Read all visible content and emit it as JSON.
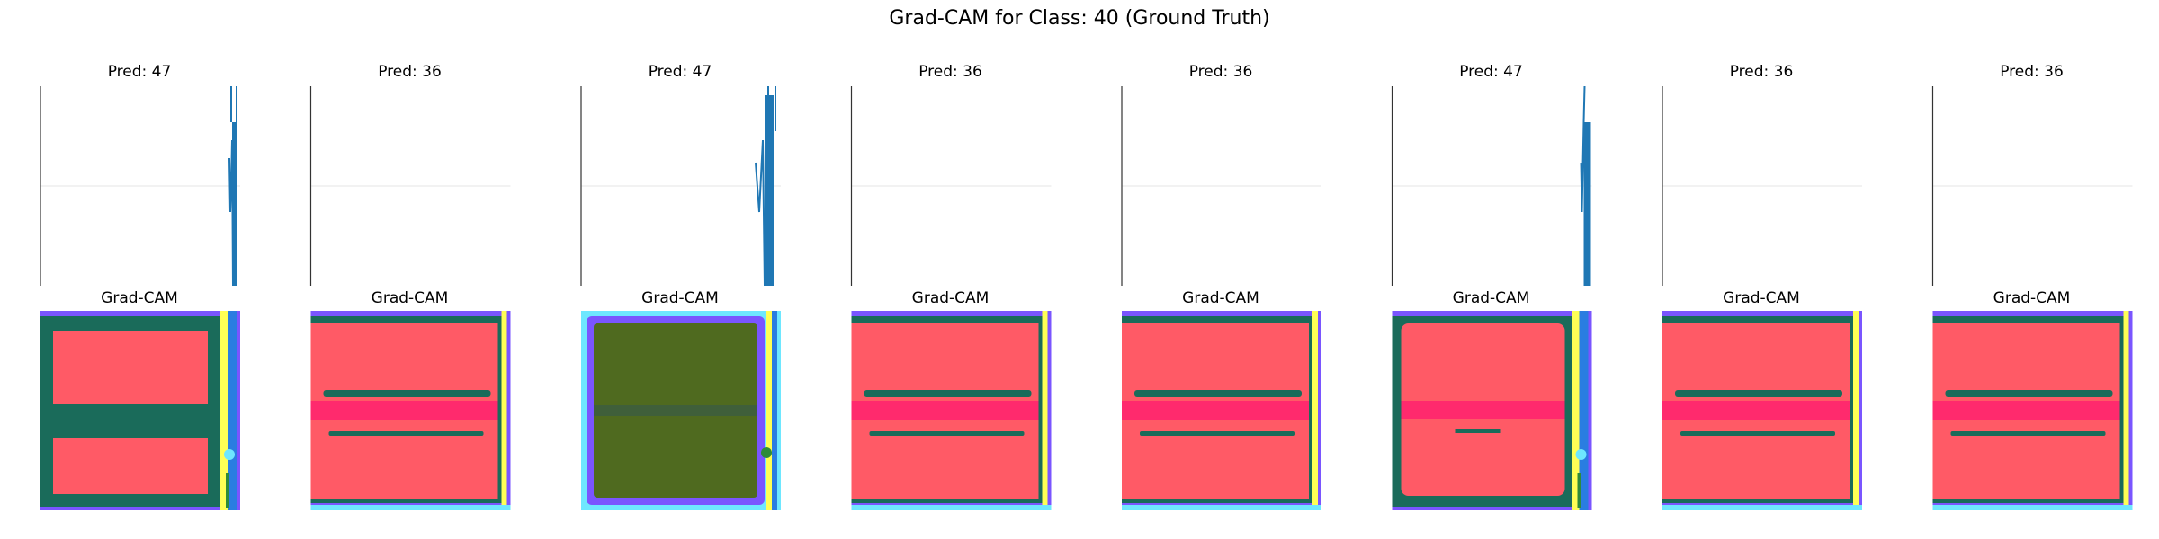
{
  "chart_data": {
    "type": "figure-grid",
    "title": "Grad-CAM for Class: 40 (Ground Truth)",
    "rows": [
      "signal",
      "gradcam"
    ],
    "gradcam_label": "Grad-CAM",
    "panels": [
      {
        "pred_label": "Pred: 47",
        "signal_variant": "A",
        "heatmap_variant": "edge"
      },
      {
        "pred_label": "Pred: 36",
        "signal_variant": "none",
        "heatmap_variant": "red"
      },
      {
        "pred_label": "Pred: 47",
        "signal_variant": "B",
        "heatmap_variant": "olive"
      },
      {
        "pred_label": "Pred: 36",
        "signal_variant": "none",
        "heatmap_variant": "red"
      },
      {
        "pred_label": "Pred: 36",
        "signal_variant": "none",
        "heatmap_variant": "red"
      },
      {
        "pred_label": "Pred: 47",
        "signal_variant": "C",
        "heatmap_variant": "edge2"
      },
      {
        "pred_label": "Pred: 36",
        "signal_variant": "none",
        "heatmap_variant": "red"
      },
      {
        "pred_label": "Pred: 36",
        "signal_variant": "none",
        "heatmap_variant": "red"
      }
    ],
    "colors": {
      "signal": "#1f77b4",
      "axis": "#333333",
      "grid": "#e6e6e6",
      "heat_red": "#ff5a66",
      "heat_band": "#ff2a6d",
      "heat_teal": "#1a6b5a",
      "heat_purple": "#7a55ff",
      "heat_cyan": "#6ee7ff",
      "heat_yellow": "#ffff55",
      "heat_blue": "#2a7de1",
      "heat_olive": "#4f6a1f",
      "heat_green": "#2e8b3a"
    }
  }
}
